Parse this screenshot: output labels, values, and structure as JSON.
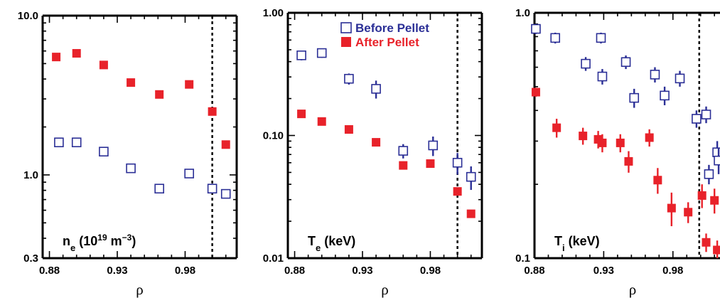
{
  "colors": {
    "before": "#2b2f96",
    "after": "#e8222a",
    "axis": "#000000"
  },
  "legend": {
    "before": "Before Pellet",
    "after": "After Pellet"
  },
  "chart_data": [
    {
      "type": "scatter",
      "scale": "log",
      "label": {
        "main": "n",
        "sub": "e",
        "paren": " (10",
        "sup": "19",
        "unit": " m",
        "unit_sup": "−3",
        "close": ")"
      },
      "xlabel": "ρ",
      "xlim": [
        0.875,
        1.018
      ],
      "ylim": [
        0.3,
        10.0
      ],
      "xticks": [
        "0.88",
        "0.93",
        "0.98"
      ],
      "xtick_values": [
        0.88,
        0.93,
        0.98
      ],
      "yticks": [
        "0.3",
        "1.0",
        "10.0"
      ],
      "ytick_values": [
        0.3,
        1.0,
        10.0
      ],
      "vline": 1.0,
      "series": [
        {
          "name": "Before Pellet",
          "style": "open",
          "x": [
            0.887,
            0.9,
            0.92,
            0.94,
            0.961,
            0.983,
            1.0,
            1.01
          ],
          "y": [
            1.6,
            1.6,
            1.4,
            1.1,
            0.82,
            1.02,
            0.82,
            0.76
          ],
          "err": [
            0.05,
            0.05,
            0.05,
            0.05,
            0.04,
            0.05,
            0.05,
            0.04
          ]
        },
        {
          "name": "After Pellet",
          "style": "filled",
          "x": [
            0.885,
            0.9,
            0.92,
            0.94,
            0.961,
            0.983,
            1.0,
            1.01
          ],
          "y": [
            5.5,
            5.8,
            4.9,
            3.8,
            3.2,
            3.7,
            2.5,
            1.55
          ],
          "err": [
            0,
            0,
            0,
            0,
            0,
            0,
            0,
            0
          ]
        }
      ]
    },
    {
      "type": "scatter",
      "scale": "log",
      "label": {
        "main": "T",
        "sub": "e",
        "paren": " (keV)"
      },
      "xlabel": "ρ",
      "xlim": [
        0.875,
        1.018
      ],
      "ylim": [
        0.01,
        1.0
      ],
      "xticks": [
        "0.88",
        "0.93",
        "0.98"
      ],
      "xtick_values": [
        0.88,
        0.93,
        0.98
      ],
      "yticks": [
        "0.01",
        "0.10",
        "1.00"
      ],
      "ytick_values": [
        0.01,
        0.1,
        1.0
      ],
      "vline": 1.0,
      "series": [
        {
          "name": "Before Pellet",
          "style": "open",
          "x": [
            0.885,
            0.9,
            0.92,
            0.94,
            0.96,
            0.982,
            1.0,
            1.01
          ],
          "y": [
            0.45,
            0.47,
            0.29,
            0.24,
            0.075,
            0.083,
            0.06,
            0.046
          ],
          "err": [
            0.04,
            0.04,
            0.03,
            0.04,
            0.01,
            0.015,
            0.012,
            0.01
          ]
        },
        {
          "name": "After Pellet",
          "style": "filled",
          "x": [
            0.885,
            0.9,
            0.92,
            0.94,
            0.96,
            0.98,
            1.0,
            1.01
          ],
          "y": [
            0.15,
            0.13,
            0.112,
            0.088,
            0.057,
            0.059,
            0.035,
            0.023
          ],
          "err": [
            0,
            0,
            0,
            0,
            0,
            0,
            0,
            0
          ]
        }
      ]
    },
    {
      "type": "scatter",
      "scale": "log",
      "label": {
        "main": "T",
        "sub": "i",
        "paren": " (keV)"
      },
      "xlabel": "ρ",
      "xlim": [
        0.88,
        1.014
      ],
      "ylim": [
        0.1,
        1.0
      ],
      "xticks": [
        "0.88",
        "0.93",
        "0.98"
      ],
      "xtick_values": [
        0.88,
        0.93,
        0.98
      ],
      "yticks": [
        "0.1",
        "1.0"
      ],
      "ytick_values": [
        0.1,
        1.0
      ],
      "vline": 0.999,
      "series": [
        {
          "name": "Before Pellet",
          "style": "open",
          "x": [
            0.881,
            0.895,
            0.917,
            0.928,
            0.929,
            0.946,
            0.952,
            0.967,
            0.974,
            0.985,
            0.997,
            1.004,
            1.006,
            1.012,
            1.013
          ],
          "y": [
            0.86,
            0.79,
            0.62,
            0.79,
            0.55,
            0.63,
            0.45,
            0.56,
            0.46,
            0.54,
            0.37,
            0.385,
            0.22,
            0.27,
            0.25
          ],
          "err": [
            0.04,
            0.04,
            0.04,
            0.04,
            0.04,
            0.04,
            0.04,
            0.04,
            0.04,
            0.04,
            0.03,
            0.03,
            0.02,
            0.03,
            0.03
          ]
        },
        {
          "name": "After Pellet",
          "style": "filled",
          "x": [
            0.881,
            0.896,
            0.915,
            0.926,
            0.929,
            0.942,
            0.948,
            0.963,
            0.969,
            0.979,
            0.991,
            1.001,
            1.004,
            1.01,
            1.012
          ],
          "y": [
            0.475,
            0.34,
            0.315,
            0.305,
            0.295,
            0.295,
            0.248,
            0.31,
            0.208,
            0.16,
            0.154,
            0.18,
            0.116,
            0.172,
            0.108
          ],
          "err": [
            0.02,
            0.03,
            0.025,
            0.025,
            0.025,
            0.025,
            0.025,
            0.025,
            0.025,
            0.025,
            0.015,
            0.02,
            0.01,
            0.02,
            0.01
          ]
        }
      ]
    }
  ]
}
